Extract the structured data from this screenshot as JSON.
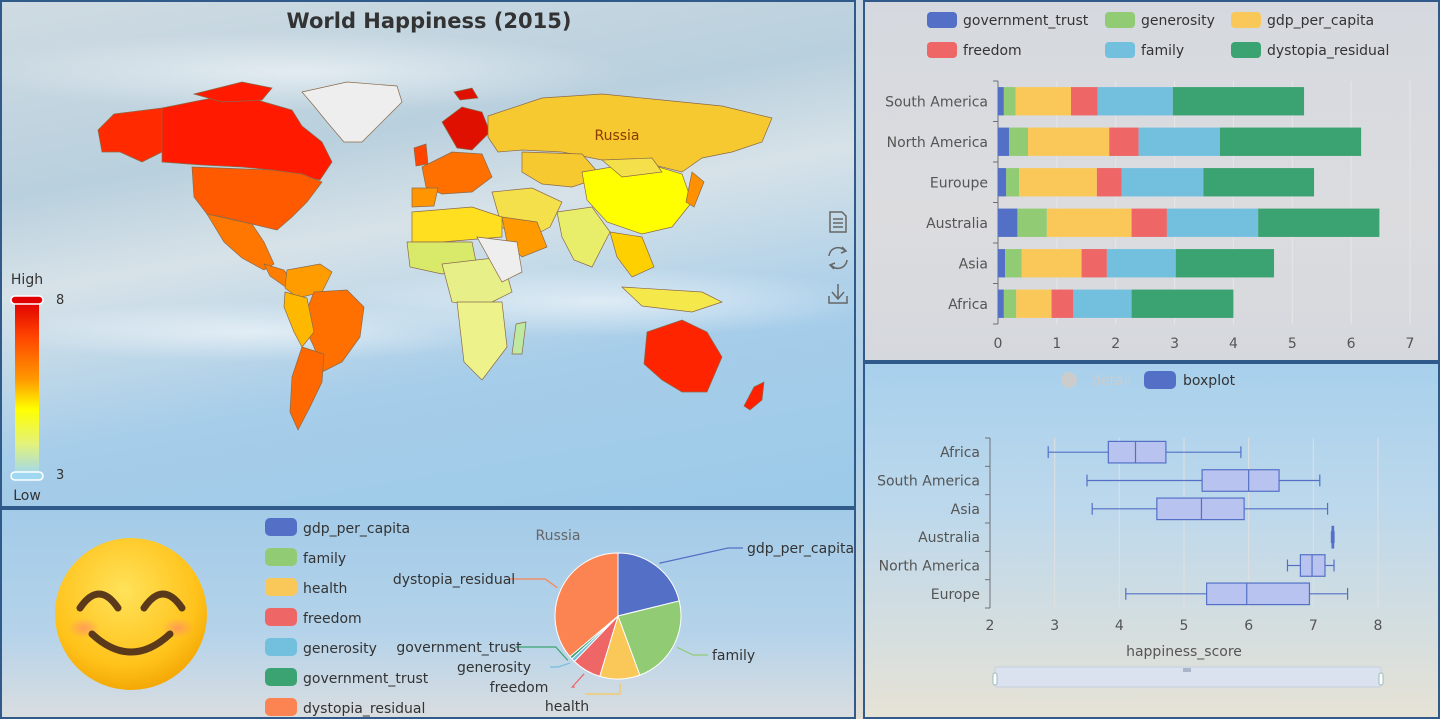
{
  "map": {
    "title": "World Happiness (2015)",
    "highlight_label": "Russia",
    "visual_map": {
      "high_label": "High",
      "low_label": "Low",
      "max": 8,
      "min": 3,
      "colors": [
        "#9fd8f0",
        "#e3f27a",
        "#ffff00",
        "#ff9a00",
        "#ff2400",
        "#e00000"
      ]
    },
    "toolbox": [
      "data-view-icon",
      "restore-icon",
      "save-image-icon"
    ]
  },
  "chart_data": [
    {
      "type": "bar",
      "stacked": true,
      "orientation": "horizontal",
      "categories": [
        "Africa",
        "Asia",
        "Australia",
        "Euroupe",
        "North America",
        "South America"
      ],
      "series": [
        {
          "name": "government_trust",
          "color": "#5470c6",
          "values": [
            0.1,
            0.12,
            0.33,
            0.14,
            0.19,
            0.1
          ]
        },
        {
          "name": "generosity",
          "color": "#91cc75",
          "values": [
            0.21,
            0.28,
            0.5,
            0.22,
            0.32,
            0.2
          ]
        },
        {
          "name": "gdp_per_capita",
          "color": "#fac858",
          "values": [
            0.6,
            1.02,
            1.44,
            1.32,
            1.38,
            0.94
          ]
        },
        {
          "name": "freedom",
          "color": "#ee6666",
          "values": [
            0.37,
            0.43,
            0.6,
            0.42,
            0.5,
            0.45
          ]
        },
        {
          "name": "family",
          "color": "#73c0de",
          "values": [
            0.99,
            1.17,
            1.55,
            1.39,
            1.38,
            1.28
          ]
        },
        {
          "name": "dystopia_residual",
          "color": "#3ba272",
          "values": [
            1.73,
            1.67,
            2.06,
            1.88,
            2.4,
            2.23
          ]
        }
      ],
      "xlim": [
        0,
        7
      ],
      "xticks": [
        0,
        1,
        2,
        3,
        4,
        5,
        6,
        7
      ],
      "legend_position": "top"
    },
    {
      "type": "boxplot",
      "orientation": "horizontal",
      "categories": [
        "Europe",
        "North America",
        "Australia",
        "Asia",
        "South America",
        "Africa"
      ],
      "series": [
        {
          "name": "boxplot",
          "color": "#5470c6",
          "data": [
            [
              4.1,
              5.35,
              5.97,
              6.94,
              7.53
            ],
            [
              6.6,
              6.8,
              6.98,
              7.18,
              7.32
            ],
            [
              7.28,
              7.29,
              7.3,
              7.31,
              7.32
            ],
            [
              3.58,
              4.58,
              5.27,
              5.93,
              7.22
            ],
            [
              3.5,
              5.28,
              6.0,
              6.47,
              7.1
            ],
            [
              2.9,
              3.83,
              4.25,
              4.72,
              5.88
            ]
          ]
        }
      ],
      "legend": [
        {
          "name": "detail",
          "disabled": true
        },
        {
          "name": "boxplot",
          "disabled": false
        }
      ],
      "xlim": [
        2,
        8
      ],
      "xticks": [
        2,
        3,
        4,
        5,
        6,
        7,
        8
      ],
      "xlabel": "happiness_score"
    },
    {
      "type": "pie",
      "title": "Russia",
      "legend": [
        "gdp_per_capita",
        "family",
        "health",
        "freedom",
        "generosity",
        "government_trust",
        "dystopia_residual"
      ],
      "legend_colors": [
        "#5470c6",
        "#91cc75",
        "#fac858",
        "#ee6666",
        "#73c0de",
        "#3ba272",
        "#fc8452"
      ],
      "slices": [
        {
          "name": "gdp_per_capita",
          "value": 1.13,
          "color": "#5470c6"
        },
        {
          "name": "family",
          "value": 1.24,
          "color": "#91cc75"
        },
        {
          "name": "health",
          "value": 0.55,
          "color": "#fac858"
        },
        {
          "name": "freedom",
          "value": 0.4,
          "color": "#ee6666"
        },
        {
          "name": "generosity",
          "value": 0.05,
          "color": "#73c0de"
        },
        {
          "name": "government_trust",
          "value": 0.04,
          "color": "#3ba272"
        },
        {
          "name": "dystopia_residual",
          "value": 1.93,
          "color": "#fc8452"
        }
      ]
    }
  ],
  "emoji": "smiling-face-icon"
}
